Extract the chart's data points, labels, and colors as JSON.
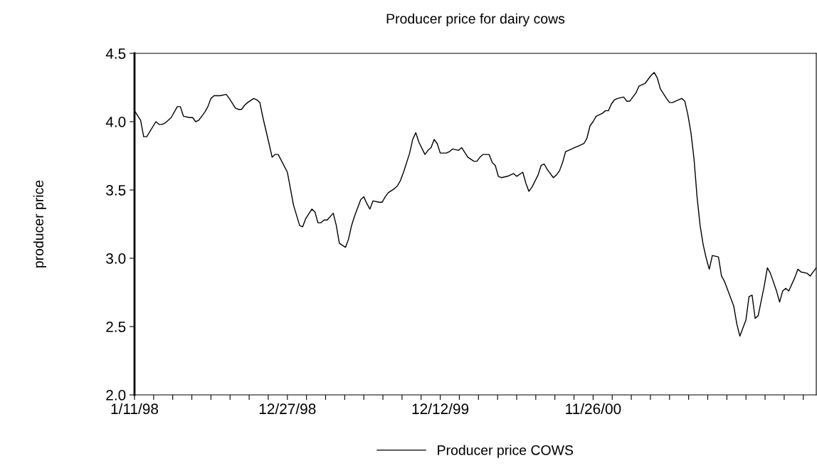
{
  "chart_data": {
    "type": "line",
    "title": "Producer price for dairy cows",
    "ylabel": "producer price",
    "series": [
      {
        "name": "Producer price COWS",
        "color": "#000000",
        "x": [
          "1998-01-11",
          "1998-01-25",
          "1998-02-01",
          "1998-02-08",
          "1998-03-01",
          "1998-03-08",
          "1998-03-15",
          "1998-03-22",
          "1998-04-05",
          "1998-04-19",
          "1998-04-26",
          "1998-05-03",
          "1998-05-17",
          "1998-05-24",
          "1998-05-31",
          "1998-06-07",
          "1998-06-21",
          "1998-06-28",
          "1998-07-05",
          "1998-07-12",
          "1998-07-26",
          "1998-08-09",
          "1998-08-16",
          "1998-08-30",
          "1998-09-06",
          "1998-09-13",
          "1998-09-20",
          "1998-09-27",
          "1998-10-11",
          "1998-10-18",
          "1998-10-25",
          "1998-11-01",
          "1998-11-15",
          "1998-11-22",
          "1998-11-29",
          "1998-12-06",
          "1998-12-27",
          "1999-01-10",
          "1999-01-24",
          "1999-01-31",
          "1999-02-07",
          "1999-02-21",
          "1999-02-28",
          "1999-03-07",
          "1999-03-14",
          "1999-03-21",
          "1999-03-28",
          "1999-04-11",
          "1999-04-18",
          "1999-04-25",
          "1999-05-09",
          "1999-05-16",
          "1999-05-23",
          "1999-05-30",
          "1999-06-13",
          "1999-06-20",
          "1999-06-27",
          "1999-07-04",
          "1999-07-11",
          "1999-07-25",
          "1999-08-01",
          "1999-08-08",
          "1999-08-15",
          "1999-08-29",
          "1999-09-05",
          "1999-09-12",
          "1999-09-19",
          "1999-10-03",
          "1999-10-10",
          "1999-10-17",
          "1999-10-24",
          "1999-11-07",
          "1999-11-14",
          "1999-11-21",
          "1999-11-28",
          "1999-12-05",
          "1999-12-12",
          "1999-12-26",
          "2000-01-02",
          "2000-01-09",
          "2000-01-23",
          "2000-01-30",
          "2000-02-13",
          "2000-02-27",
          "2000-03-05",
          "2000-03-12",
          "2000-03-19",
          "2000-04-02",
          "2000-04-09",
          "2000-04-16",
          "2000-04-23",
          "2000-04-30",
          "2000-05-14",
          "2000-05-28",
          "2000-06-04",
          "2000-06-18",
          "2000-06-25",
          "2000-07-02",
          "2000-07-09",
          "2000-07-23",
          "2000-07-30",
          "2000-08-06",
          "2000-08-13",
          "2000-08-27",
          "2000-09-03",
          "2000-09-10",
          "2000-09-17",
          "2000-09-24",
          "2000-10-08",
          "2000-10-15",
          "2000-10-22",
          "2000-11-05",
          "2000-11-12",
          "2000-11-19",
          "2000-11-26",
          "2000-12-03",
          "2000-12-17",
          "2000-12-24",
          "2000-12-31",
          "2001-01-07",
          "2001-01-14",
          "2001-01-21",
          "2001-02-04",
          "2001-02-11",
          "2001-02-18",
          "2001-03-04",
          "2001-03-11",
          "2001-03-25",
          "2001-04-01",
          "2001-04-08",
          "2001-04-15",
          "2001-04-22",
          "2001-04-29",
          "2001-05-13",
          "2001-05-20",
          "2001-05-27",
          "2001-06-03",
          "2001-06-17",
          "2001-06-24",
          "2001-07-01",
          "2001-07-08",
          "2001-07-15",
          "2001-07-22",
          "2001-07-29",
          "2001-08-05",
          "2001-08-12",
          "2001-08-19",
          "2001-08-26",
          "2001-09-09",
          "2001-09-16",
          "2001-09-23",
          "2001-09-30",
          "2001-10-14",
          "2001-10-21",
          "2001-10-28",
          "2001-11-11",
          "2001-11-18",
          "2001-11-25",
          "2001-12-02",
          "2001-12-09",
          "2001-12-23",
          "2001-12-30",
          "2002-01-06",
          "2002-01-20",
          "2002-01-27",
          "2002-02-03",
          "2002-02-10",
          "2002-02-17",
          "2002-03-03",
          "2002-03-10",
          "2002-03-17",
          "2002-03-31",
          "2002-04-07",
          "2002-04-14",
          "2002-04-21"
        ],
        "values": [
          4.08,
          4.01,
          3.89,
          3.89,
          4.0,
          3.98,
          3.98,
          3.99,
          4.03,
          4.11,
          4.11,
          4.04,
          4.03,
          4.03,
          4.0,
          4.01,
          4.07,
          4.11,
          4.17,
          4.19,
          4.19,
          4.2,
          4.17,
          4.1,
          4.09,
          4.09,
          4.12,
          4.14,
          4.17,
          4.16,
          4.14,
          4.03,
          3.84,
          3.74,
          3.76,
          3.76,
          3.63,
          3.39,
          3.24,
          3.23,
          3.29,
          3.36,
          3.34,
          3.26,
          3.26,
          3.28,
          3.28,
          3.33,
          3.24,
          3.11,
          3.08,
          3.14,
          3.24,
          3.31,
          3.43,
          3.45,
          3.4,
          3.36,
          3.42,
          3.41,
          3.41,
          3.45,
          3.48,
          3.51,
          3.53,
          3.57,
          3.63,
          3.77,
          3.87,
          3.92,
          3.85,
          3.76,
          3.79,
          3.81,
          3.87,
          3.84,
          3.77,
          3.77,
          3.78,
          3.8,
          3.79,
          3.81,
          3.74,
          3.71,
          3.71,
          3.74,
          3.76,
          3.76,
          3.7,
          3.68,
          3.6,
          3.59,
          3.6,
          3.62,
          3.6,
          3.63,
          3.55,
          3.49,
          3.52,
          3.61,
          3.68,
          3.69,
          3.65,
          3.59,
          3.61,
          3.64,
          3.7,
          3.78,
          3.8,
          3.81,
          3.82,
          3.84,
          3.88,
          3.97,
          4.0,
          4.04,
          4.06,
          4.08,
          4.08,
          4.13,
          4.16,
          4.17,
          4.18,
          4.15,
          4.15,
          4.21,
          4.26,
          4.28,
          4.31,
          4.34,
          4.36,
          4.32,
          4.24,
          4.17,
          4.14,
          4.14,
          4.15,
          4.17,
          4.15,
          4.05,
          3.92,
          3.73,
          3.45,
          3.24,
          3.1,
          3.0,
          2.92,
          3.02,
          3.01,
          2.87,
          2.83,
          2.77,
          2.65,
          2.52,
          2.43,
          2.55,
          2.72,
          2.73,
          2.56,
          2.58,
          2.8,
          2.93,
          2.89,
          2.76,
          2.68,
          2.76,
          2.78,
          2.76,
          2.86,
          2.92,
          2.9,
          2.89,
          2.87,
          2.9,
          2.93
        ]
      }
    ],
    "xlim": [
      "1998-01-11",
      "2002-04-21"
    ],
    "xticks": [
      {
        "value": "1998-01-11",
        "label": "1/11/98"
      },
      {
        "value": "1998-02-23T18:00",
        "label": null
      },
      {
        "value": "1998-04-08T12:00",
        "label": null
      },
      {
        "value": "1998-05-22T06:00",
        "label": null
      },
      {
        "value": "1998-07-05",
        "label": null
      },
      {
        "value": "1998-08-17T18:00",
        "label": null
      },
      {
        "value": "1998-09-30T12:00",
        "label": null
      },
      {
        "value": "1998-11-13T06:00",
        "label": null
      },
      {
        "value": "1998-12-27",
        "label": "12/27/98"
      },
      {
        "value": "1999-02-08T18:00",
        "label": null
      },
      {
        "value": "1999-03-24T12:00",
        "label": null
      },
      {
        "value": "1999-05-07T06:00",
        "label": null
      },
      {
        "value": "1999-06-20",
        "label": null
      },
      {
        "value": "1999-08-02T18:00",
        "label": null
      },
      {
        "value": "1999-09-15T12:00",
        "label": null
      },
      {
        "value": "1999-10-29T06:00",
        "label": null
      },
      {
        "value": "1999-12-12",
        "label": "12/12/99"
      },
      {
        "value": "2000-01-24T18:00",
        "label": null
      },
      {
        "value": "2000-03-08T12:00",
        "label": null
      },
      {
        "value": "2000-04-21T06:00",
        "label": null
      },
      {
        "value": "2000-06-04",
        "label": null
      },
      {
        "value": "2000-07-17T18:00",
        "label": null
      },
      {
        "value": "2000-08-30T12:00",
        "label": null
      },
      {
        "value": "2000-10-13T06:00",
        "label": null
      },
      {
        "value": "2000-11-26",
        "label": "11/26/00"
      },
      {
        "value": "2001-01-08T18:00",
        "label": null
      },
      {
        "value": "2001-02-21T12:00",
        "label": null
      },
      {
        "value": "2001-04-06T06:00",
        "label": null
      },
      {
        "value": "2001-05-20",
        "label": null
      },
      {
        "value": "2001-07-02T18:00",
        "label": null
      },
      {
        "value": "2001-08-15T12:00",
        "label": null
      },
      {
        "value": "2001-09-28T06:00",
        "label": null
      },
      {
        "value": "2001-11-11",
        "label": null
      },
      {
        "value": "2001-12-24T18:00",
        "label": null
      },
      {
        "value": "2002-02-06T12:00",
        "label": null
      },
      {
        "value": "2002-03-22T06:00",
        "label": null
      }
    ],
    "ylim": [
      2.0,
      4.5
    ],
    "yticks": [
      {
        "value": 2.0,
        "label": "2.0"
      },
      {
        "value": 2.5,
        "label": "2.5"
      },
      {
        "value": 3.0,
        "label": "3.0"
      },
      {
        "value": 3.5,
        "label": "3.5"
      },
      {
        "value": 4.0,
        "label": "4.0"
      },
      {
        "value": 4.5,
        "label": "4.5"
      }
    ],
    "grid": false,
    "legend": "bottom",
    "marker": "none",
    "line_style": "solid"
  }
}
